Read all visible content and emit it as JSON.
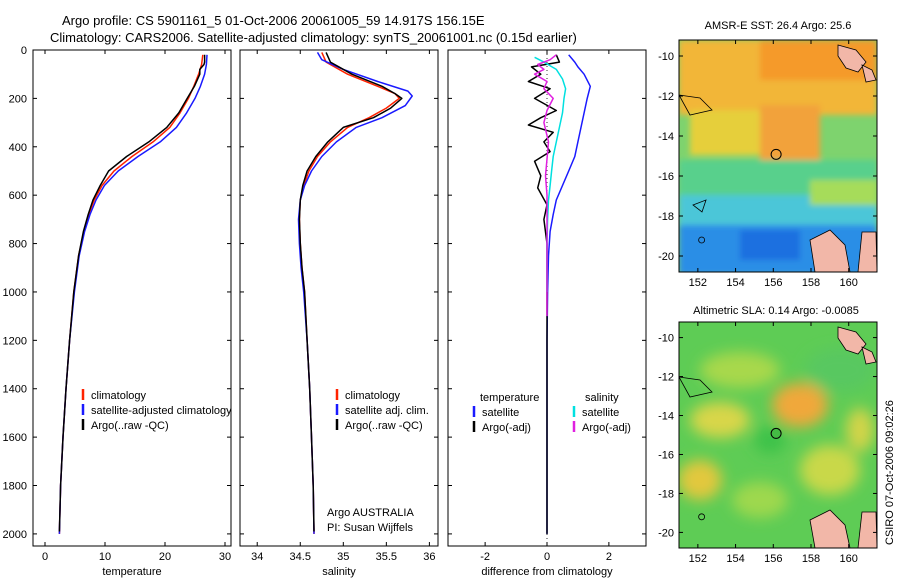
{
  "header": {
    "title_line1": "Argo profile: CS 5901161_5 01-Oct-2006 20061005_59 14.917S 156.15E",
    "title_line2": "Climatology: CARS2006. Satellite-adjusted climatology: synTS_20061001.nc (0.15d earlier)"
  },
  "side_stamp": "CSIRO 07-Oct-2006 09:02:26",
  "colors": {
    "climatology": "#ff2200",
    "satellite": "#1a1aff",
    "argo": "#000000",
    "sat_salt": "#00e0e0",
    "argo_salt": "#e020e0"
  },
  "chart_data": [
    {
      "type": "line",
      "id": "temperature",
      "xlabel": "temperature",
      "ylabel": "",
      "xlim": [
        -2,
        31
      ],
      "ylim": [
        2050,
        0
      ],
      "xticks": [
        0,
        10,
        20,
        30
      ],
      "yticks": [
        0,
        200,
        400,
        600,
        800,
        1000,
        1200,
        1400,
        1600,
        1800,
        2000
      ],
      "legend": [
        "climatology",
        "satellite-adjusted climatology",
        "Argo(..raw -QC)"
      ],
      "series": [
        {
          "name": "climatology",
          "color": "#ff2200",
          "points": [
            [
              26.3,
              20
            ],
            [
              26.1,
              60
            ],
            [
              25.6,
              100
            ],
            [
              24.8,
              150
            ],
            [
              23.9,
              200
            ],
            [
              22.5,
              260
            ],
            [
              20.8,
              320
            ],
            [
              18.0,
              380
            ],
            [
              14.5,
              440
            ],
            [
              11.5,
              500
            ],
            [
              9.5,
              560
            ],
            [
              8.2,
              620
            ],
            [
              7.3,
              680
            ],
            [
              6.5,
              750
            ],
            [
              5.6,
              850
            ],
            [
              4.8,
              1000
            ],
            [
              4.1,
              1200
            ],
            [
              3.5,
              1400
            ],
            [
              3.0,
              1600
            ],
            [
              2.6,
              1800
            ],
            [
              2.4,
              2000
            ]
          ]
        },
        {
          "name": "satellite",
          "color": "#1a1aff",
          "points": [
            [
              27.0,
              20
            ],
            [
              26.9,
              60
            ],
            [
              26.6,
              100
            ],
            [
              25.9,
              150
            ],
            [
              25.0,
              200
            ],
            [
              23.6,
              260
            ],
            [
              21.9,
              320
            ],
            [
              19.2,
              380
            ],
            [
              15.5,
              440
            ],
            [
              12.2,
              500
            ],
            [
              9.9,
              560
            ],
            [
              8.5,
              620
            ],
            [
              7.5,
              680
            ],
            [
              6.6,
              750
            ],
            [
              5.7,
              850
            ],
            [
              4.9,
              1000
            ],
            [
              4.1,
              1200
            ],
            [
              3.5,
              1400
            ],
            [
              3.0,
              1600
            ],
            [
              2.6,
              1800
            ],
            [
              2.4,
              2000
            ]
          ]
        },
        {
          "name": "Argo",
          "color": "#000000",
          "points": [
            [
              26.6,
              20
            ],
            [
              26.6,
              50
            ],
            [
              26.5,
              60
            ],
            [
              25.8,
              80
            ],
            [
              25.8,
              100
            ],
            [
              24.9,
              150
            ],
            [
              23.7,
              200
            ],
            [
              22.3,
              260
            ],
            [
              20.3,
              320
            ],
            [
              17.3,
              380
            ],
            [
              13.6,
              440
            ],
            [
              10.6,
              500
            ],
            [
              9.2,
              560
            ],
            [
              8.0,
              620
            ],
            [
              7.2,
              680
            ],
            [
              6.4,
              750
            ],
            [
              5.6,
              850
            ],
            [
              4.8,
              1000
            ],
            [
              4.1,
              1200
            ],
            [
              3.5,
              1400
            ],
            [
              3.0,
              1600
            ],
            [
              2.6,
              1800
            ],
            [
              2.4,
              1990
            ]
          ]
        }
      ]
    },
    {
      "type": "line",
      "id": "salinity",
      "xlabel": "salinity",
      "ylabel": "",
      "xlim": [
        33.8,
        36.1
      ],
      "ylim": [
        2050,
        0
      ],
      "xticks": [
        34,
        34.5,
        35,
        35.5,
        36
      ],
      "yticks": [
        0,
        200,
        400,
        600,
        800,
        1000,
        1200,
        1400,
        1600,
        1800,
        2000
      ],
      "legend": [
        "climatology",
        "satellite adj. clim.",
        "Argo(..raw -QC)"
      ],
      "annotations": [
        "Argo AUSTRALIA",
        "PI: Susan Wijffels"
      ],
      "series": [
        {
          "name": "climatology",
          "color": "#ff2200",
          "points": [
            [
              34.75,
              10
            ],
            [
              34.8,
              50
            ],
            [
              35.05,
              100
            ],
            [
              35.4,
              150
            ],
            [
              35.6,
              180
            ],
            [
              35.65,
              200
            ],
            [
              35.5,
              240
            ],
            [
              35.3,
              280
            ],
            [
              35.05,
              320
            ],
            [
              34.85,
              380
            ],
            [
              34.7,
              440
            ],
            [
              34.6,
              500
            ],
            [
              34.54,
              560
            ],
            [
              34.5,
              620
            ],
            [
              34.49,
              700
            ],
            [
              34.5,
              800
            ],
            [
              34.52,
              900
            ],
            [
              34.55,
              1000
            ],
            [
              34.58,
              1200
            ],
            [
              34.61,
              1400
            ],
            [
              34.63,
              1600
            ],
            [
              34.65,
              1800
            ],
            [
              34.66,
              2000
            ]
          ]
        },
        {
          "name": "satellite",
          "color": "#1a1aff",
          "points": [
            [
              34.7,
              10
            ],
            [
              34.75,
              40
            ],
            [
              35.0,
              80
            ],
            [
              35.4,
              130
            ],
            [
              35.75,
              170
            ],
            [
              35.8,
              190
            ],
            [
              35.72,
              230
            ],
            [
              35.45,
              280
            ],
            [
              35.15,
              320
            ],
            [
              34.92,
              380
            ],
            [
              34.75,
              440
            ],
            [
              34.63,
              500
            ],
            [
              34.55,
              560
            ],
            [
              34.5,
              620
            ],
            [
              34.48,
              700
            ],
            [
              34.49,
              800
            ],
            [
              34.51,
              900
            ],
            [
              34.54,
              1000
            ],
            [
              34.58,
              1200
            ],
            [
              34.61,
              1400
            ],
            [
              34.63,
              1600
            ],
            [
              34.65,
              1800
            ],
            [
              34.66,
              2000
            ]
          ]
        },
        {
          "name": "Argo",
          "color": "#000000",
          "points": [
            [
              34.8,
              10
            ],
            [
              34.85,
              50
            ],
            [
              35.1,
              100
            ],
            [
              35.45,
              150
            ],
            [
              35.6,
              180
            ],
            [
              35.68,
              200
            ],
            [
              35.55,
              240
            ],
            [
              35.35,
              280
            ],
            [
              35.0,
              320
            ],
            [
              34.82,
              380
            ],
            [
              34.68,
              440
            ],
            [
              34.58,
              500
            ],
            [
              34.53,
              560
            ],
            [
              34.5,
              620
            ],
            [
              34.49,
              700
            ],
            [
              34.5,
              800
            ],
            [
              34.52,
              900
            ],
            [
              34.55,
              1000
            ],
            [
              34.58,
              1200
            ],
            [
              34.61,
              1400
            ],
            [
              34.63,
              1600
            ],
            [
              34.65,
              1800
            ],
            [
              34.66,
              1990
            ]
          ]
        }
      ]
    },
    {
      "type": "line",
      "id": "difference",
      "xlabel": "difference from climatology",
      "ylabel": "",
      "xlim": [
        -3.2,
        3.2
      ],
      "ylim": [
        2050,
        0
      ],
      "xticks": [
        -2,
        0,
        2
      ],
      "yticks": [
        0,
        200,
        400,
        600,
        800,
        1000,
        1200,
        1400,
        1600,
        1800,
        2000
      ],
      "legend_temperature": {
        "title": "temperature",
        "entries": [
          "satellite",
          "Argo(-adj)"
        ]
      },
      "legend_salinity": {
        "title": "salinity",
        "entries": [
          "satellite",
          "Argo(-adj)"
        ]
      },
      "series": [
        {
          "name": "temperature satellite",
          "color": "#1a1aff",
          "points": [
            [
              0.7,
              20
            ],
            [
              0.9,
              50
            ],
            [
              1.0,
              70
            ],
            [
              1.2,
              100
            ],
            [
              1.4,
              150
            ],
            [
              1.3,
              200
            ],
            [
              1.2,
              260
            ],
            [
              1.1,
              320
            ],
            [
              1.0,
              380
            ],
            [
              0.9,
              440
            ],
            [
              0.7,
              500
            ],
            [
              0.5,
              560
            ],
            [
              0.3,
              620
            ],
            [
              0.2,
              680
            ],
            [
              0.1,
              750
            ],
            [
              0.05,
              850
            ],
            [
              0.02,
              1000
            ],
            [
              0,
              1200
            ],
            [
              0,
              1400
            ],
            [
              0,
              1600
            ],
            [
              0,
              1800
            ],
            [
              0,
              2000
            ]
          ]
        },
        {
          "name": "temperature Argo(-adj)",
          "color": "#000000",
          "points": [
            [
              0.3,
              20
            ],
            [
              0.4,
              50
            ],
            [
              -0.5,
              70
            ],
            [
              -0.2,
              100
            ],
            [
              -0.6,
              130
            ],
            [
              0.1,
              160
            ],
            [
              -0.4,
              200
            ],
            [
              0.3,
              250
            ],
            [
              -0.2,
              280
            ],
            [
              -0.6,
              310
            ],
            [
              0.2,
              340
            ],
            [
              -0.1,
              380
            ],
            [
              0.1,
              420
            ],
            [
              -0.4,
              460
            ],
            [
              -0.2,
              520
            ],
            [
              -0.3,
              570
            ],
            [
              0,
              640
            ],
            [
              -0.1,
              700
            ],
            [
              0,
              800
            ],
            [
              0,
              1000
            ],
            [
              0,
              1400
            ],
            [
              0,
              1800
            ],
            [
              0,
              2000
            ]
          ]
        },
        {
          "name": "salinity satellite",
          "color": "#00e0e0",
          "points": [
            [
              -0.4,
              30
            ],
            [
              -0.1,
              50
            ],
            [
              0.3,
              80
            ],
            [
              0.5,
              120
            ],
            [
              0.6,
              160
            ],
            [
              0.55,
              200
            ],
            [
              0.5,
              260
            ],
            [
              0.4,
              320
            ],
            [
              0.3,
              380
            ],
            [
              0.2,
              440
            ],
            [
              0.15,
              500
            ],
            [
              0.1,
              560
            ],
            [
              0.05,
              620
            ],
            [
              0.02,
              700
            ],
            [
              0,
              800
            ],
            [
              0,
              1000
            ]
          ]
        },
        {
          "name": "salinity Argo(-adj)",
          "color": "#e020e0",
          "points": [
            [
              0.3,
              20
            ],
            [
              0.1,
              40
            ],
            [
              -0.3,
              60
            ],
            [
              -0.1,
              80
            ],
            [
              -0.4,
              100
            ],
            [
              0,
              130
            ],
            [
              -0.1,
              160
            ],
            [
              0.2,
              200
            ],
            [
              0,
              250
            ],
            [
              -0.1,
              300
            ],
            [
              0.05,
              380
            ],
            [
              0,
              450
            ],
            [
              -0.05,
              520
            ],
            [
              0,
              600
            ],
            [
              0,
              700
            ],
            [
              0,
              800
            ],
            [
              0,
              1000
            ],
            [
              0,
              1100
            ]
          ]
        }
      ]
    },
    {
      "type": "heatmap",
      "id": "sst",
      "title": "AMSR-E SST: 26.4  Argo: 25.6",
      "xlim": [
        151,
        161.5
      ],
      "ylim": [
        -20.8,
        -9.2
      ],
      "xticks": [
        152,
        154,
        156,
        158,
        160
      ],
      "yticks": [
        -10,
        -12,
        -14,
        -16,
        -18,
        -20
      ],
      "marker": [
        156.15,
        -14.917
      ]
    },
    {
      "type": "heatmap",
      "id": "sla",
      "title": "Altimetric SLA: 0.14  Argo: -0.0085",
      "xlim": [
        151,
        161.5
      ],
      "ylim": [
        -20.8,
        -9.2
      ],
      "xticks": [
        152,
        154,
        156,
        158,
        160
      ],
      "yticks": [
        -10,
        -12,
        -14,
        -16,
        -18,
        -20
      ],
      "marker": [
        156.15,
        -14.917
      ]
    }
  ]
}
